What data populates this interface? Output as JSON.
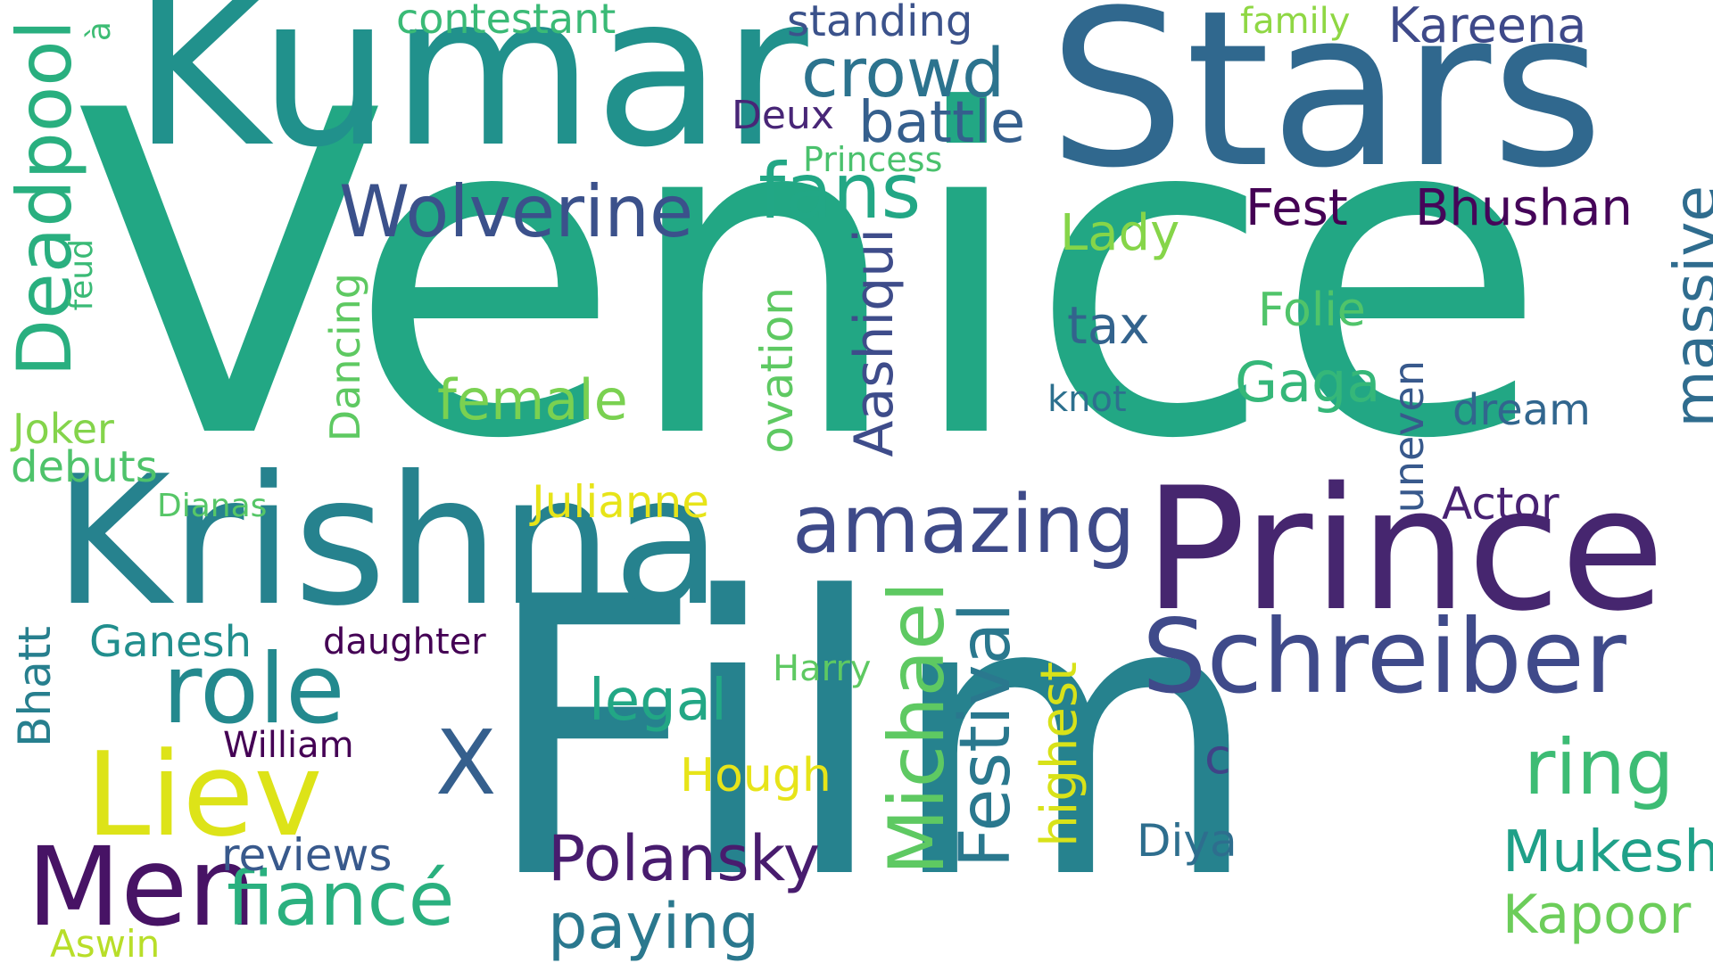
{
  "words": [
    {
      "text": "Venice",
      "color": "#22a784"
    },
    {
      "text": "Film",
      "color": "#26828e"
    },
    {
      "text": "Stars",
      "color": "#30688e"
    },
    {
      "text": "Kumar",
      "color": "#21918c"
    },
    {
      "text": "Krishna",
      "color": "#26828e"
    },
    {
      "text": "Prince",
      "color": "#46266f"
    },
    {
      "text": "Schreiber",
      "color": "#3f4a8a"
    },
    {
      "text": "Liev",
      "color": "#dde318"
    },
    {
      "text": "Men",
      "color": "#471365"
    },
    {
      "text": "role",
      "color": "#23898e"
    },
    {
      "text": "X",
      "color": "#355f8d"
    },
    {
      "text": "Deadpool",
      "color": "#29af7f"
    },
    {
      "text": "Wolverine",
      "color": "#3b518b"
    },
    {
      "text": "fans",
      "color": "#22a785"
    },
    {
      "text": "crowd",
      "color": "#2c738e"
    },
    {
      "text": "battle",
      "color": "#355f8d"
    },
    {
      "text": "amazing",
      "color": "#3e4a89"
    },
    {
      "text": "Michael",
      "color": "#5ec962"
    },
    {
      "text": "Festival",
      "color": "#2a788e"
    },
    {
      "text": "massive",
      "color": "#2f6c8e"
    },
    {
      "text": "Aashiqui",
      "color": "#3e4c8a"
    },
    {
      "text": "fiancé",
      "color": "#2ab07f"
    },
    {
      "text": "Polansky",
      "color": "#481c6e"
    },
    {
      "text": "ring",
      "color": "#3dbc74"
    },
    {
      "text": "Mukesh",
      "color": "#1fa088"
    },
    {
      "text": "Kapoor",
      "color": "#6ccd5a"
    },
    {
      "text": "paying",
      "color": "#2a788e"
    },
    {
      "text": "legal",
      "color": "#22a785"
    },
    {
      "text": "female",
      "color": "#7ad151"
    },
    {
      "text": "Fest",
      "color": "#440154"
    },
    {
      "text": "Bhushan",
      "color": "#450559"
    },
    {
      "text": "Lady",
      "color": "#86d549"
    },
    {
      "text": "Gaga",
      "color": "#35b779"
    },
    {
      "text": "Folie",
      "color": "#50c46a"
    },
    {
      "text": "tax",
      "color": "#33638d"
    },
    {
      "text": "dream",
      "color": "#31668e"
    },
    {
      "text": "highest",
      "color": "#d8e219"
    },
    {
      "text": "ovation",
      "color": "#5ec962"
    },
    {
      "text": "Dancing",
      "color": "#5ec962"
    },
    {
      "text": "uneven",
      "color": "#38598c"
    },
    {
      "text": "Actor",
      "color": "#482173"
    },
    {
      "text": "Julianne",
      "color": "#e7e419"
    },
    {
      "text": "Hough",
      "color": "#e7e419"
    },
    {
      "text": "reviews",
      "color": "#38598c"
    },
    {
      "text": "Bhatt",
      "color": "#277f8e"
    },
    {
      "text": "Ganesh",
      "color": "#218e8d"
    },
    {
      "text": "daughter",
      "color": "#440154"
    },
    {
      "text": "William",
      "color": "#440154"
    },
    {
      "text": "Harry",
      "color": "#5ec962"
    },
    {
      "text": "Diya",
      "color": "#2e6e8e"
    },
    {
      "text": "c",
      "color": "#404387"
    },
    {
      "text": "contestant",
      "color": "#3aba76"
    },
    {
      "text": "standing",
      "color": "#3b528b"
    },
    {
      "text": "Kareena",
      "color": "#3e4989"
    },
    {
      "text": "family",
      "color": "#8fd744"
    },
    {
      "text": "Deux",
      "color": "#482677"
    },
    {
      "text": "Princess",
      "color": "#4ac16d"
    },
    {
      "text": "knot",
      "color": "#2d708e"
    },
    {
      "text": "Joker",
      "color": "#84d44b"
    },
    {
      "text": "debuts",
      "color": "#4ec36b"
    },
    {
      "text": "Dianas",
      "color": "#56c667"
    },
    {
      "text": "feud",
      "color": "#3aba76"
    },
    {
      "text": "à",
      "color": "#3dbc74"
    },
    {
      "text": "Aswin",
      "color": "#b8de29"
    }
  ]
}
